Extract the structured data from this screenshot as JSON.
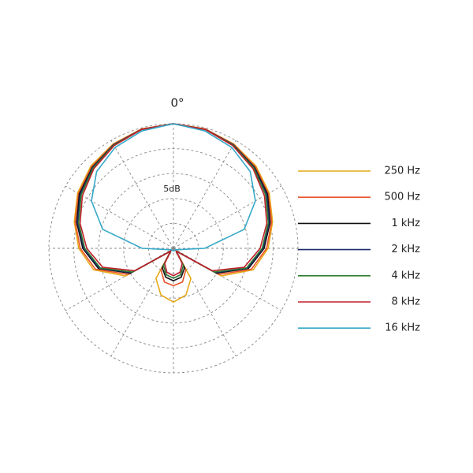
{
  "chart_data": {
    "type": "polar",
    "theta_zero_label": "0°",
    "ring_annotation": "5dB",
    "angles": [
      0,
      15,
      30,
      45,
      60,
      75,
      90,
      105,
      120,
      135,
      150,
      165,
      180,
      195,
      210,
      225,
      240,
      255,
      270,
      285,
      300,
      315,
      330,
      345
    ],
    "rlim": [
      -25,
      0
    ],
    "rticks": [
      -20,
      -15,
      -10,
      -5,
      0
    ],
    "thetaticks": [
      0,
      30,
      60,
      90,
      120,
      150,
      180,
      210,
      240,
      270,
      300,
      330
    ],
    "grid": true,
    "legend": "right",
    "series": [
      {
        "name": "250 Hz",
        "color": "#e6a817",
        "values": [
          0,
          -0.2,
          -0.8,
          -1.6,
          -2.8,
          -4.4,
          -6.0,
          -8.4,
          -13.9,
          -24.2,
          -18,
          -15.3,
          -14.2,
          -15.3,
          -18,
          -24.2,
          -13.9,
          -8.4,
          -6.0,
          -4.4,
          -2.8,
          -1.6,
          -0.8,
          -0.2
        ]
      },
      {
        "name": "500 Hz",
        "color": "#e8552a",
        "values": [
          0,
          -0.2,
          -0.9,
          -1.8,
          -3.0,
          -4.6,
          -6.3,
          -8.8,
          -14.5,
          -24.2,
          -20,
          -18,
          -17.5,
          -18,
          -20,
          -24.2,
          -14.5,
          -8.8,
          -6.3,
          -4.6,
          -3.0,
          -1.8,
          -0.9,
          -0.2
        ]
      },
      {
        "name": "1 kHz",
        "color": "#111111",
        "values": [
          0,
          -0.3,
          -1.0,
          -2.0,
          -3.2,
          -4.9,
          -6.8,
          -9.4,
          -15,
          -24.2,
          -20.5,
          -19,
          -18.5,
          -19,
          -20.5,
          -24.2,
          -15,
          -9.4,
          -6.8,
          -4.9,
          -3.2,
          -2.0,
          -1.0,
          -0.3
        ]
      },
      {
        "name": "2 kHz",
        "color": "#1c2a6e",
        "values": [
          0,
          -0.3,
          -1.0,
          -2.1,
          -3.4,
          -5.1,
          -7.0,
          -9.6,
          -15.3,
          -24.2,
          -21,
          -19.5,
          -19,
          -19.5,
          -21,
          -24.2,
          -15.3,
          -9.6,
          -7.0,
          -5.1,
          -3.4,
          -2.1,
          -1.0,
          -0.3
        ]
      },
      {
        "name": "4 kHz",
        "color": "#2e7d32",
        "values": [
          0,
          -0.3,
          -1.1,
          -2.2,
          -3.6,
          -5.3,
          -7.2,
          -9.8,
          -15.5,
          -24.2,
          -21,
          -19.5,
          -19,
          -19.5,
          -21,
          -24.2,
          -15.5,
          -9.8,
          -7.2,
          -5.3,
          -3.6,
          -2.2,
          -1.1,
          -0.3
        ]
      },
      {
        "name": "8 kHz",
        "color": "#c0202a",
        "values": [
          0,
          -0.3,
          -1.2,
          -2.4,
          -3.9,
          -5.6,
          -7.6,
          -10.3,
          -16,
          -24.2,
          -21.5,
          -20,
          -19.5,
          -20,
          -21.5,
          -24.2,
          -16,
          -10.3,
          -7.6,
          -5.6,
          -3.9,
          -2.4,
          -1.2,
          -0.3
        ]
      },
      {
        "name": "16 kHz",
        "color": "#35a8c8",
        "values": [
          0,
          -0.6,
          -1.6,
          -3.2,
          -6,
          -10.3,
          -18.7,
          -24,
          -24.5,
          -24.5,
          -24.5,
          -24.5,
          -24.5,
          -24.5,
          -24.5,
          -24.5,
          -24.5,
          -24,
          -18.7,
          -10.3,
          -6,
          -3.2,
          -1.6,
          -0.6
        ]
      }
    ]
  }
}
